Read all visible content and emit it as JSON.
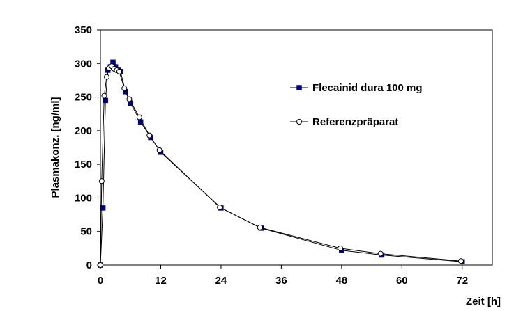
{
  "chart_data": {
    "type": "line",
    "xlabel": "Zeit [h]",
    "ylabel": "Plasmakonz. [ng/ml]",
    "xlim": [
      0,
      78
    ],
    "ylim": [
      0,
      350
    ],
    "xticks": [
      0,
      12,
      24,
      36,
      48,
      60,
      72
    ],
    "yticks": [
      0,
      50,
      100,
      150,
      200,
      250,
      300,
      350
    ],
    "grid": false,
    "legend_position": "top-right",
    "series": [
      {
        "name": "Flecainid dura 100 mg",
        "marker": "filled-square",
        "color": "#000080",
        "x": [
          0,
          0.5,
          1,
          1.5,
          2,
          2.5,
          3,
          3.5,
          4,
          5,
          6,
          8,
          10,
          12,
          24,
          32,
          48,
          56,
          72
        ],
        "y": [
          0,
          85,
          245,
          290,
          295,
          302,
          295,
          290,
          288,
          258,
          241,
          213,
          190,
          168,
          85,
          55,
          22,
          15,
          5
        ]
      },
      {
        "name": "Referenzpräparat",
        "marker": "open-circle",
        "color": "#000000",
        "x": [
          0,
          0.25,
          0.75,
          1.25,
          1.75,
          2.25,
          2.75,
          3.25,
          3.75,
          4.75,
          5.75,
          7.75,
          9.75,
          11.75,
          23.75,
          31.75,
          47.75,
          55.75,
          71.75
        ],
        "y": [
          0,
          125,
          252,
          280,
          293,
          296,
          292,
          290,
          288,
          263,
          247,
          220,
          193,
          171,
          86,
          56,
          25,
          17,
          6
        ]
      }
    ]
  }
}
